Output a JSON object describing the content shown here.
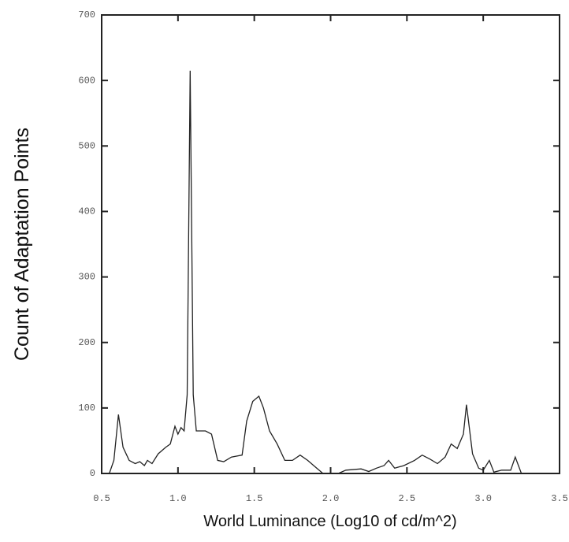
{
  "chart_data": {
    "type": "line",
    "xlabel": "World Luminance (Log10 of cd/m^2)",
    "ylabel": "Count of Adaptation Points",
    "xlim": [
      0.5,
      3.5
    ],
    "ylim": [
      0,
      700
    ],
    "xticks": [
      0.5,
      {
        "value": 1,
        "label": "1.0"
      },
      1.5,
      {
        "value": 2,
        "label": "2.0"
      },
      2.5,
      {
        "value": 3,
        "label": "3.0"
      },
      3.5
    ],
    "yticks": [
      0,
      100,
      200,
      300,
      400,
      500,
      600,
      700
    ],
    "color": "#222222",
    "x": [
      0.55,
      0.58,
      0.61,
      0.64,
      0.68,
      0.72,
      0.75,
      0.78,
      0.8,
      0.83,
      0.87,
      0.92,
      0.95,
      0.98,
      1.0,
      1.02,
      1.04,
      1.06,
      1.08,
      1.1,
      1.12,
      1.18,
      1.22,
      1.26,
      1.3,
      1.35,
      1.42,
      1.45,
      1.49,
      1.53,
      1.56,
      1.6,
      1.65,
      1.7,
      1.75,
      1.8,
      1.85,
      1.9,
      1.95,
      2.05,
      2.1,
      2.2,
      2.25,
      2.3,
      2.35,
      2.38,
      2.42,
      2.48,
      2.55,
      2.6,
      2.65,
      2.7,
      2.75,
      2.79,
      2.83,
      2.87,
      2.89,
      2.93,
      2.97,
      3.0,
      3.04,
      3.07,
      3.12,
      3.18,
      3.21,
      3.25,
      3.43
    ],
    "values": [
      0,
      20,
      90,
      40,
      20,
      15,
      18,
      12,
      20,
      15,
      30,
      40,
      45,
      72,
      60,
      70,
      65,
      120,
      615,
      120,
      65,
      65,
      60,
      20,
      18,
      25,
      28,
      80,
      110,
      118,
      100,
      65,
      45,
      20,
      20,
      28,
      20,
      10,
      0,
      0,
      5,
      7,
      3,
      8,
      12,
      20,
      8,
      12,
      20,
      28,
      22,
      15,
      25,
      45,
      38,
      60,
      105,
      30,
      8,
      5,
      20,
      2,
      5,
      5,
      25,
      0,
      0
    ]
  }
}
